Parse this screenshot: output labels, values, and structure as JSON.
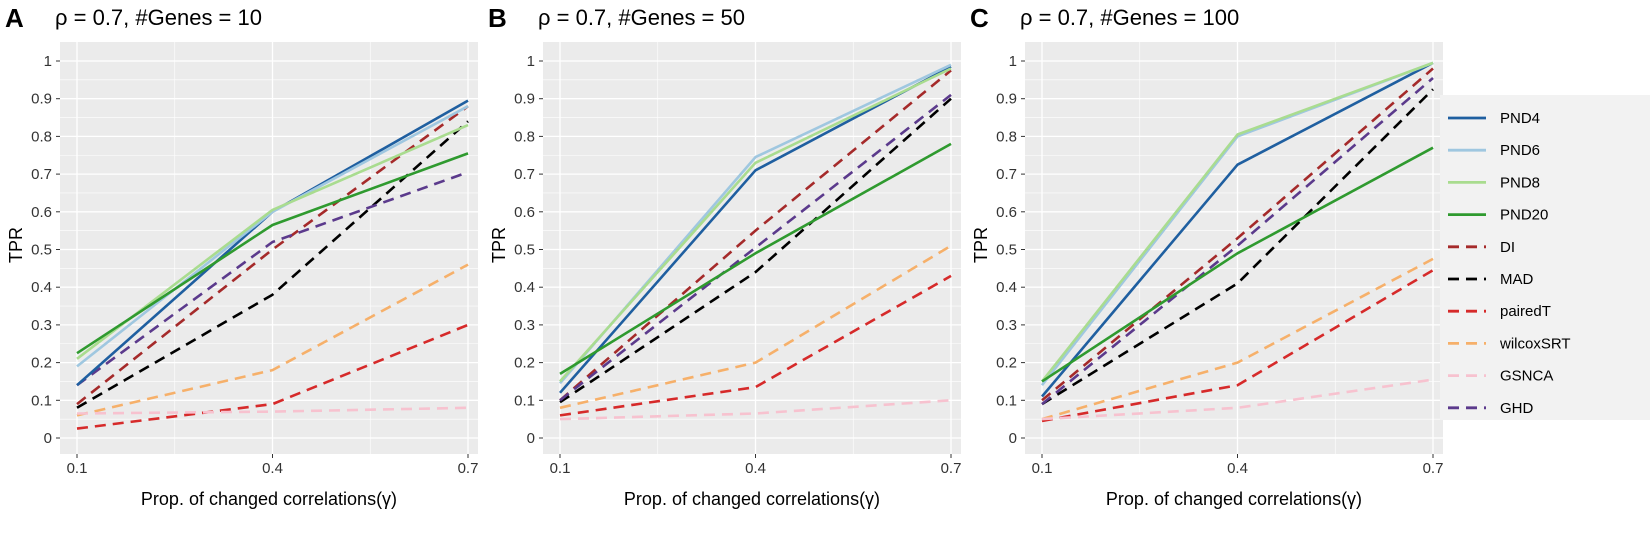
{
  "chart_data": [
    {
      "type": "line",
      "panel": "A",
      "title": "ρ = 0.7, #Genes = 10",
      "xlabel": "Prop. of changed correlations(γ)",
      "ylabel": "TPR",
      "x": [
        0.1,
        0.4,
        0.7
      ],
      "xticks": [
        "0.1",
        "0.4",
        "0.7"
      ],
      "xlim": [
        0.1,
        0.7
      ],
      "yticks": [
        "0",
        "0.1",
        "0.2",
        "0.3",
        "0.4",
        "0.5",
        "0.6",
        "0.7",
        "0.8",
        "0.9",
        "1"
      ],
      "ylim": [
        0,
        1
      ],
      "series": [
        {
          "name": "PND4",
          "values": [
            0.14,
            0.6,
            0.895
          ]
        },
        {
          "name": "PND6",
          "values": [
            0.19,
            0.6,
            0.88
          ]
        },
        {
          "name": "PND8",
          "values": [
            0.21,
            0.605,
            0.83
          ]
        },
        {
          "name": "PND20",
          "values": [
            0.225,
            0.565,
            0.755
          ]
        },
        {
          "name": "DI",
          "values": [
            0.09,
            0.5,
            0.88
          ]
        },
        {
          "name": "MAD",
          "values": [
            0.08,
            0.38,
            0.84
          ]
        },
        {
          "name": "pairedT",
          "values": [
            0.025,
            0.09,
            0.3
          ]
        },
        {
          "name": "wilcoxSRT",
          "values": [
            0.06,
            0.18,
            0.46
          ]
        },
        {
          "name": "GSNCA",
          "values": [
            0.065,
            0.07,
            0.08
          ]
        },
        {
          "name": "GHD",
          "values": [
            0.14,
            0.52,
            0.705
          ]
        }
      ]
    },
    {
      "type": "line",
      "panel": "B",
      "title": "ρ = 0.7, #Genes = 50",
      "xlabel": "Prop. of changed correlations(γ)",
      "ylabel": "TPR",
      "x": [
        0.1,
        0.4,
        0.7
      ],
      "xticks": [
        "0.1",
        "0.4",
        "0.7"
      ],
      "xlim": [
        0.1,
        0.7
      ],
      "yticks": [
        "0",
        "0.1",
        "0.2",
        "0.3",
        "0.4",
        "0.5",
        "0.6",
        "0.7",
        "0.8",
        "0.9",
        "1"
      ],
      "ylim": [
        0,
        1
      ],
      "series": [
        {
          "name": "PND4",
          "values": [
            0.12,
            0.71,
            0.985
          ]
        },
        {
          "name": "PND6",
          "values": [
            0.145,
            0.745,
            0.99
          ]
        },
        {
          "name": "PND8",
          "values": [
            0.15,
            0.73,
            0.98
          ]
        },
        {
          "name": "PND20",
          "values": [
            0.17,
            0.49,
            0.78
          ]
        },
        {
          "name": "DI",
          "values": [
            0.1,
            0.55,
            0.975
          ]
        },
        {
          "name": "MAD",
          "values": [
            0.095,
            0.44,
            0.9
          ]
        },
        {
          "name": "pairedT",
          "values": [
            0.06,
            0.135,
            0.43
          ]
        },
        {
          "name": "wilcoxSRT",
          "values": [
            0.08,
            0.2,
            0.51
          ]
        },
        {
          "name": "GSNCA",
          "values": [
            0.05,
            0.065,
            0.1
          ]
        },
        {
          "name": "GHD",
          "values": [
            0.1,
            0.505,
            0.91
          ]
        }
      ]
    },
    {
      "type": "line",
      "panel": "C",
      "title": "ρ = 0.7, #Genes = 100",
      "xlabel": "Prop. of changed correlations(γ)",
      "ylabel": "TPR",
      "x": [
        0.1,
        0.4,
        0.7
      ],
      "xticks": [
        "0.1",
        "0.4",
        "0.7"
      ],
      "xlim": [
        0.1,
        0.7
      ],
      "yticks": [
        "0",
        "0.1",
        "0.2",
        "0.3",
        "0.4",
        "0.5",
        "0.6",
        "0.7",
        "0.8",
        "0.9",
        "1"
      ],
      "ylim": [
        0,
        1
      ],
      "series": [
        {
          "name": "PND4",
          "values": [
            0.11,
            0.725,
            0.995
          ]
        },
        {
          "name": "PND6",
          "values": [
            0.14,
            0.8,
            0.995
          ]
        },
        {
          "name": "PND8",
          "values": [
            0.15,
            0.805,
            0.995
          ]
        },
        {
          "name": "PND20",
          "values": [
            0.15,
            0.49,
            0.77
          ]
        },
        {
          "name": "DI",
          "values": [
            0.1,
            0.53,
            0.98
          ]
        },
        {
          "name": "MAD",
          "values": [
            0.09,
            0.41,
            0.925
          ]
        },
        {
          "name": "pairedT",
          "values": [
            0.045,
            0.14,
            0.445
          ]
        },
        {
          "name": "wilcoxSRT",
          "values": [
            0.05,
            0.2,
            0.475
          ]
        },
        {
          "name": "GSNCA",
          "values": [
            0.05,
            0.08,
            0.155
          ]
        },
        {
          "name": "GHD",
          "values": [
            0.09,
            0.51,
            0.955
          ]
        }
      ]
    }
  ],
  "legend": [
    {
      "name": "PND4",
      "color": "#1f5fa0",
      "dashed": false
    },
    {
      "name": "PND6",
      "color": "#9fc7e0",
      "dashed": false
    },
    {
      "name": "PND8",
      "color": "#a9dc8f",
      "dashed": false
    },
    {
      "name": "PND20",
      "color": "#2f9a2f",
      "dashed": false
    },
    {
      "name": "DI",
      "color": "#a52a2a",
      "dashed": true
    },
    {
      "name": "MAD",
      "color": "#000000",
      "dashed": true
    },
    {
      "name": "pairedT",
      "color": "#d62a2a",
      "dashed": true
    },
    {
      "name": "wilcoxSRT",
      "color": "#f6b06a",
      "dashed": true
    },
    {
      "name": "GSNCA",
      "color": "#f7c2cf",
      "dashed": true
    },
    {
      "name": "GHD",
      "color": "#5b3a8c",
      "dashed": true
    }
  ],
  "colors": {
    "panel_bg": "#ebebeb",
    "grid": "#ffffff"
  }
}
